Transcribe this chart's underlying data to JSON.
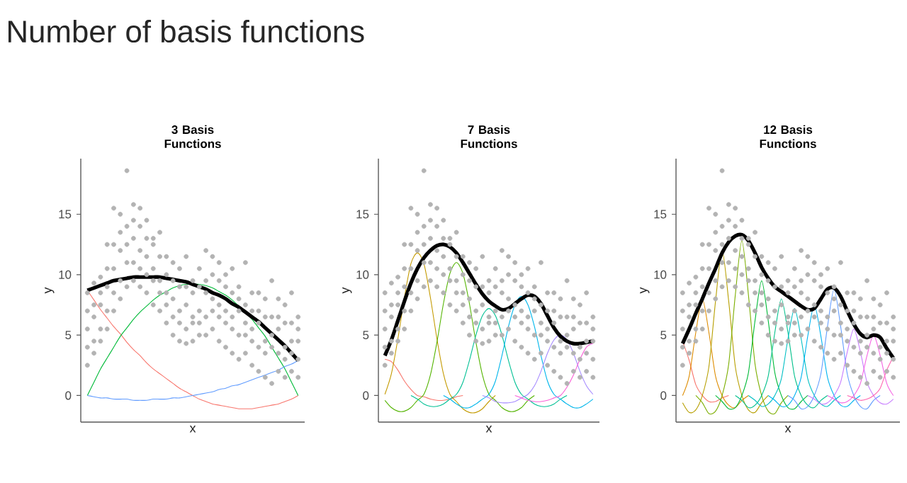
{
  "chart_data": [
    {
      "type": "other",
      "title": "Number of basis functions"
    },
    {
      "type": "line",
      "title": "3 Basis Functions",
      "xlabel": "x",
      "ylabel": "y",
      "tick_labels": "y",
      "categories": [
        null,
        null,
        null,
        null,
        null,
        null,
        null,
        null,
        null,
        null,
        null,
        null,
        null,
        null,
        null,
        null,
        null,
        null,
        null,
        null,
        null,
        null,
        null,
        null,
        null,
        null,
        null,
        null,
        null,
        null,
        null,
        null,
        null
      ],
      "ylim": [
        -2.2,
        19.6
      ],
      "yticks": [
        0,
        5,
        10,
        15
      ],
      "series": [
        {
          "type": "scatter",
          "marker": "circle",
          "color": "#b3b3b3",
          "values": [
            8.5,
            9.3,
            9.8,
            12.5,
            15.5,
            15,
            18.6,
            15.8,
            15.5,
            14.5,
            13,
            13.5,
            11.5,
            11,
            10.5,
            11.5,
            9.5,
            10.5,
            12,
            11.5,
            11,
            10,
            10.5,
            9,
            11,
            8.5,
            8.5,
            8,
            9.5,
            8,
            7.5,
            8.5,
            6.5
          ]
        },
        {
          "type": "scatter",
          "marker": "circle",
          "color": "#b3b3b3",
          "values": [
            7,
            7.5,
            8.5,
            10.5,
            12.5,
            13.5,
            14,
            14.5,
            14,
            13,
            12.5,
            11.5,
            10,
            9.5,
            9,
            9,
            8.5,
            9,
            9.5,
            10,
            9.5,
            9,
            8.5,
            8,
            7.5,
            7,
            7,
            6.5,
            6.5,
            6.5,
            6,
            6,
            5.5
          ]
        },
        {
          "type": "scatter",
          "marker": "circle",
          "color": "#b3b3b3",
          "values": [
            5.5,
            6.5,
            7.5,
            9,
            10.5,
            12,
            12.5,
            13,
            12,
            11.5,
            10.5,
            9.5,
            8.5,
            8,
            7,
            7.5,
            6.5,
            7,
            8.5,
            8,
            7.5,
            7,
            6.5,
            7,
            6,
            5.5,
            6,
            4.5,
            5,
            5.5,
            4,
            4.5,
            4.5
          ]
        },
        {
          "type": "scatter",
          "marker": "circle",
          "color": "#b3b3b3",
          "values": [
            4,
            4.5,
            5.5,
            7,
            8.5,
            9.5,
            11,
            11,
            10.5,
            10,
            9.5,
            8.5,
            7.5,
            6.5,
            6,
            5.5,
            6,
            6,
            6.5,
            7,
            6.5,
            6,
            5.5,
            5,
            5,
            4.5,
            4,
            3.5,
            4,
            3.5,
            3,
            3.5,
            3
          ]
        },
        {
          "type": "scatter",
          "marker": "circle",
          "color": "#b3b3b3",
          "values": [
            2.5,
            3.5,
            4.5,
            5.5,
            7,
            8,
            9,
            9.5,
            9,
            8.5,
            7.5,
            7,
            6,
            5,
            4.5,
            4.3,
            4.5,
            5,
            5,
            5.5,
            4.5,
            4,
            3.5,
            3,
            3.5,
            2.5,
            2,
            1.5,
            1,
            2,
            1.5,
            2,
            1.5
          ]
        },
        {
          "color": "#f8766d",
          "values": [
            8.7,
            7.9,
            7.1,
            6.4,
            5.7,
            5.1,
            4.4,
            3.8,
            3.3,
            2.7,
            2.2,
            1.8,
            1.4,
            1,
            0.6,
            0.3,
            0,
            -0.3,
            -0.5,
            -0.7,
            -0.8,
            -0.9,
            -1,
            -1.1,
            -1.1,
            -1.1,
            -1,
            -0.9,
            -0.8,
            -0.7,
            -0.5,
            -0.3,
            0
          ]
        },
        {
          "color": "#00ba38",
          "values": [
            0,
            1.1,
            2.2,
            3.1,
            4,
            4.9,
            5.6,
            6.3,
            6.9,
            7.4,
            7.9,
            8.3,
            8.6,
            8.9,
            9.1,
            9.2,
            9.2,
            9.2,
            9.1,
            8.9,
            8.6,
            8.3,
            7.9,
            7.4,
            6.9,
            6.3,
            5.6,
            4.9,
            4,
            3.1,
            2.2,
            1.1,
            0
          ]
        },
        {
          "color": "#619cff",
          "values": [
            0,
            -0.1,
            -0.2,
            -0.2,
            -0.3,
            -0.3,
            -0.3,
            -0.4,
            -0.4,
            -0.4,
            -0.3,
            -0.3,
            -0.3,
            -0.2,
            -0.2,
            -0.1,
            0,
            0.1,
            0.2,
            0.3,
            0.5,
            0.6,
            0.8,
            0.9,
            1.1,
            1.3,
            1.5,
            1.7,
            1.9,
            2.1,
            2.4,
            2.6,
            2.9
          ]
        },
        {
          "color": "#000000",
          "values": [
            8.7,
            8.9,
            9.1,
            9.3,
            9.5,
            9.6,
            9.7,
            9.8,
            9.8,
            9.8,
            9.8,
            9.8,
            9.7,
            9.6,
            9.5,
            9.4,
            9.2,
            9,
            8.8,
            8.5,
            8.3,
            8,
            7.6,
            7.3,
            6.9,
            6.5,
            6.1,
            5.6,
            5.1,
            4.6,
            4.1,
            3.5,
            2.9
          ]
        }
      ]
    },
    {
      "type": "line",
      "title": "7 Basis Functions",
      "xlabel": "x",
      "ylabel": "y",
      "tick_labels": "y",
      "categories": [
        null,
        null,
        null,
        null,
        null,
        null,
        null,
        null,
        null,
        null,
        null,
        null,
        null,
        null,
        null,
        null,
        null,
        null,
        null,
        null,
        null,
        null,
        null,
        null,
        null,
        null,
        null,
        null,
        null,
        null,
        null,
        null,
        null
      ],
      "ylim": [
        -2.2,
        19.6
      ],
      "yticks": [
        0,
        5,
        10,
        15
      ],
      "series": [
        {
          "type": "scatter",
          "marker": "circle",
          "color": "#b3b3b3",
          "values": [
            8.5,
            9.3,
            9.8,
            12.5,
            15.5,
            15,
            18.6,
            15.8,
            15.5,
            14.5,
            13,
            13.5,
            11.5,
            11,
            10.5,
            11.5,
            9.5,
            10.5,
            12,
            11.5,
            11,
            10,
            10.5,
            9,
            11,
            8.5,
            8.5,
            8,
            9.5,
            8,
            7.5,
            8.5,
            6.5
          ]
        },
        {
          "type": "scatter",
          "marker": "circle",
          "color": "#b3b3b3",
          "values": [
            7,
            7.5,
            8.5,
            10.5,
            12.5,
            13.5,
            14,
            14.5,
            14,
            13,
            12.5,
            11.5,
            10,
            9.5,
            9,
            9,
            8.5,
            9,
            9.5,
            10,
            9.5,
            9,
            8.5,
            8,
            7.5,
            7,
            7,
            6.5,
            6.5,
            6.5,
            6,
            6,
            5.5
          ]
        },
        {
          "type": "scatter",
          "marker": "circle",
          "color": "#b3b3b3",
          "values": [
            5.5,
            6.5,
            7.5,
            9,
            10.5,
            12,
            12.5,
            13,
            12,
            11.5,
            10.5,
            9.5,
            8.5,
            8,
            7,
            7.5,
            6.5,
            7,
            8.5,
            8,
            7.5,
            7,
            6.5,
            7,
            6,
            5.5,
            6,
            4.5,
            5,
            5.5,
            4,
            4.5,
            4.5
          ]
        },
        {
          "type": "scatter",
          "marker": "circle",
          "color": "#b3b3b3",
          "values": [
            4,
            4.5,
            5.5,
            7,
            8.5,
            9.5,
            11,
            11,
            10.5,
            10,
            9.5,
            8.5,
            7.5,
            6.5,
            6,
            5.5,
            6,
            6,
            6.5,
            7,
            6.5,
            6,
            5.5,
            5,
            5,
            4.5,
            4,
            3.5,
            4,
            3.5,
            3,
            3.5,
            3
          ]
        },
        {
          "type": "scatter",
          "marker": "circle",
          "color": "#b3b3b3",
          "values": [
            2.5,
            3.5,
            4.5,
            5.5,
            7,
            8,
            9,
            9.5,
            9,
            8.5,
            7.5,
            7,
            6,
            5,
            4.5,
            4.3,
            4.5,
            5,
            5,
            5.5,
            4.5,
            4,
            3.5,
            3,
            3.5,
            2.5,
            2,
            1.5,
            1,
            2,
            1.5,
            2,
            1.5
          ]
        },
        {
          "color": "#f8766d",
          "values": [
            3,
            2.8,
            2.1,
            1.2,
            0.5,
            0,
            -0.1,
            -0.3,
            -0.4,
            -0.4,
            -0.3,
            -0.1,
            0,
            null,
            null,
            null,
            null,
            null,
            null,
            null,
            null,
            null,
            null,
            null,
            null,
            null,
            null,
            null,
            null,
            null,
            null,
            null,
            null
          ]
        },
        {
          "color": "#c49a00",
          "values": [
            0.1,
            1.8,
            4.7,
            8.1,
            10.9,
            11.8,
            10.9,
            8.1,
            4.7,
            1.8,
            0.1,
            -0.5,
            -1.1,
            -1.4,
            -1.4,
            -1.1,
            -0.5,
            0,
            null,
            null,
            null,
            null,
            null,
            null,
            null,
            null,
            null,
            null,
            null,
            null,
            null,
            null,
            null
          ]
        },
        {
          "color": "#53b400",
          "values": [
            -0.4,
            -1,
            -1.3,
            -1.3,
            -1,
            -0.4,
            0.1,
            1.7,
            4.4,
            7.6,
            10.1,
            11,
            10.1,
            7.6,
            4.4,
            1.7,
            0.1,
            -0.4,
            -1,
            -1.3,
            -1.3,
            -1,
            -0.4,
            0,
            null,
            null,
            null,
            null,
            null,
            null,
            null,
            null,
            null
          ]
        },
        {
          "color": "#00c094",
          "values": [
            null,
            null,
            null,
            null,
            0,
            -0.3,
            -0.7,
            -0.9,
            -0.9,
            -0.7,
            -0.3,
            0.1,
            1.1,
            2.9,
            5,
            6.6,
            7.2,
            6.6,
            5,
            2.9,
            1.1,
            0.1,
            -0.3,
            -0.7,
            -0.9,
            -0.9,
            -0.7,
            -0.3,
            0,
            null,
            null,
            null,
            null
          ]
        },
        {
          "color": "#00b6eb",
          "values": [
            null,
            null,
            null,
            null,
            null,
            null,
            null,
            null,
            null,
            0,
            -0.3,
            -0.7,
            -1,
            -1,
            -0.7,
            -0.3,
            0.1,
            1.2,
            3.3,
            5.7,
            7.5,
            8.2,
            7.5,
            5.7,
            3.3,
            1.2,
            0.1,
            -0.3,
            -0.7,
            -1,
            -1,
            -0.7,
            -0.3
          ]
        },
        {
          "color": "#a58aff",
          "values": [
            null,
            null,
            null,
            null,
            null,
            null,
            null,
            null,
            null,
            null,
            null,
            null,
            null,
            null,
            null,
            0,
            -0.2,
            -0.5,
            -0.6,
            -0.6,
            -0.5,
            -0.2,
            0.1,
            0.8,
            2,
            3.5,
            4.6,
            5,
            4.6,
            3.5,
            2,
            0.8,
            0.1
          ]
        },
        {
          "color": "#fb61d7",
          "values": [
            null,
            null,
            null,
            null,
            null,
            null,
            null,
            null,
            null,
            null,
            null,
            null,
            null,
            null,
            null,
            null,
            null,
            null,
            null,
            null,
            0,
            -0.2,
            -0.4,
            -0.5,
            -0.5,
            -0.4,
            -0.2,
            0,
            0.7,
            1.7,
            3,
            4,
            4.3
          ]
        },
        {
          "color": "#000000",
          "values": [
            3.3,
            4.6,
            6.2,
            7.8,
            9.3,
            10.5,
            11.4,
            12,
            12.4,
            12.5,
            12.3,
            11.8,
            11,
            10.1,
            9.2,
            8.4,
            7.8,
            7.4,
            7.1,
            7.2,
            7.6,
            8,
            8.3,
            8.2,
            7.6,
            6.6,
            5.6,
            4.9,
            4.5,
            4.3,
            4.3,
            4.4,
            4.5
          ]
        }
      ]
    },
    {
      "type": "line",
      "title": "12 Basis Functions",
      "xlabel": "x",
      "ylabel": "y",
      "tick_labels": "y",
      "categories": [
        null,
        null,
        null,
        null,
        null,
        null,
        null,
        null,
        null,
        null,
        null,
        null,
        null,
        null,
        null,
        null,
        null,
        null,
        null,
        null,
        null,
        null,
        null,
        null,
        null,
        null,
        null,
        null,
        null,
        null,
        null,
        null,
        null
      ],
      "ylim": [
        -2.2,
        19.6
      ],
      "yticks": [
        0,
        5,
        10,
        15
      ],
      "series": [
        {
          "type": "scatter",
          "marker": "circle",
          "color": "#b3b3b3",
          "values": [
            8.5,
            9.3,
            9.8,
            12.5,
            15.5,
            15,
            18.6,
            15.8,
            15.5,
            14.5,
            13,
            13.5,
            11.5,
            11,
            10.5,
            11.5,
            9.5,
            10.5,
            12,
            11.5,
            11,
            10,
            10.5,
            9,
            11,
            8.5,
            8.5,
            8,
            9.5,
            8,
            7.5,
            8.5,
            6.5
          ]
        },
        {
          "type": "scatter",
          "marker": "circle",
          "color": "#b3b3b3",
          "values": [
            7,
            7.5,
            8.5,
            10.5,
            12.5,
            13.5,
            14,
            14.5,
            14,
            13,
            12.5,
            11.5,
            10,
            9.5,
            9,
            9,
            8.5,
            9,
            9.5,
            10,
            9.5,
            9,
            8.5,
            8,
            7.5,
            7,
            7,
            6.5,
            6.5,
            6.5,
            6,
            6,
            5.5
          ]
        },
        {
          "type": "scatter",
          "marker": "circle",
          "color": "#b3b3b3",
          "values": [
            5.5,
            6.5,
            7.5,
            9,
            10.5,
            12,
            12.5,
            13,
            12,
            11.5,
            10.5,
            9.5,
            8.5,
            8,
            7,
            7.5,
            6.5,
            7,
            8.5,
            8,
            7.5,
            7,
            6.5,
            7,
            6,
            5.5,
            6,
            4.5,
            5,
            5.5,
            4,
            4.5,
            4.5
          ]
        },
        {
          "type": "scatter",
          "marker": "circle",
          "color": "#b3b3b3",
          "values": [
            4,
            4.5,
            5.5,
            7,
            8.5,
            9.5,
            11,
            11,
            10.5,
            10,
            9.5,
            8.5,
            7.5,
            6.5,
            6,
            5.5,
            6,
            6,
            6.5,
            7,
            6.5,
            6,
            5.5,
            5,
            5,
            4.5,
            4,
            3.5,
            4,
            3.5,
            3,
            3.5,
            3
          ]
        },
        {
          "type": "scatter",
          "marker": "circle",
          "color": "#b3b3b3",
          "values": [
            2.5,
            3.5,
            4.5,
            5.5,
            7,
            8,
            9,
            9.5,
            9,
            8.5,
            7.5,
            7,
            6,
            5,
            4.5,
            4.3,
            4.5,
            5,
            5,
            5.5,
            4.5,
            4,
            3.5,
            3,
            3.5,
            2.5,
            2,
            1.5,
            1,
            2,
            1.5,
            2,
            1.5
          ]
        },
        {
          "color": "#f8766d",
          "values": [
            4.5,
            2.9,
            0.9,
            0,
            -0.5,
            -0.5,
            -0.2,
            0,
            null,
            null,
            null,
            null,
            null,
            null,
            null,
            null,
            null,
            null,
            null,
            null,
            null,
            null,
            null,
            null,
            null,
            null,
            null,
            null,
            null,
            null,
            null,
            null,
            null
          ]
        },
        {
          "color": "#de8c00",
          "values": [
            0,
            1.6,
            5.2,
            8,
            5.2,
            1.6,
            0,
            -0.8,
            -1,
            -0.4,
            0,
            null,
            null,
            null,
            null,
            null,
            null,
            null,
            null,
            null,
            null,
            null,
            null,
            null,
            null,
            null,
            null,
            null,
            null,
            null,
            null,
            null,
            null
          ]
        },
        {
          "color": "#b79f00",
          "values": [
            -0.6,
            -1.4,
            -1.2,
            0,
            2.4,
            7.8,
            12,
            7.8,
            2.4,
            0,
            -1.2,
            -1.4,
            -0.6,
            0,
            null,
            null,
            null,
            null,
            null,
            null,
            null,
            null,
            null,
            null,
            null,
            null,
            null,
            null,
            null,
            null,
            null,
            null,
            null
          ]
        },
        {
          "color": "#7cae00",
          "values": [
            null,
            null,
            0,
            -0.6,
            -1.5,
            -1.3,
            0,
            2.6,
            8.3,
            12.8,
            8.3,
            2.6,
            0,
            -1.3,
            -1.5,
            -0.6,
            0,
            null,
            null,
            null,
            null,
            null,
            null,
            null,
            null,
            null,
            null,
            null,
            null,
            null,
            null,
            null,
            null
          ]
        },
        {
          "color": "#00ba38",
          "values": [
            null,
            null,
            null,
            null,
            null,
            0,
            -0.5,
            -1.1,
            -1,
            0,
            1.9,
            6.2,
            9.5,
            6.2,
            1.9,
            0,
            -1,
            -1.1,
            -0.5,
            0,
            null,
            null,
            null,
            null,
            null,
            null,
            null,
            null,
            null,
            null,
            null,
            null,
            null
          ]
        },
        {
          "color": "#00c08b",
          "values": [
            null,
            null,
            null,
            null,
            null,
            null,
            null,
            null,
            0,
            -0.4,
            -1,
            -0.8,
            0,
            1.6,
            5.2,
            8,
            5.2,
            1.6,
            0,
            -0.8,
            -1,
            -0.4,
            0,
            null,
            null,
            null,
            null,
            null,
            null,
            null,
            null,
            null,
            null
          ]
        },
        {
          "color": "#00bfc4",
          "values": [
            null,
            null,
            null,
            null,
            null,
            null,
            null,
            null,
            null,
            null,
            0,
            -0.4,
            -0.9,
            -0.7,
            0,
            1.4,
            4.7,
            7.2,
            4.7,
            1.4,
            0,
            -0.7,
            -0.9,
            -0.4,
            0,
            null,
            null,
            null,
            null,
            null,
            null,
            null,
            null
          ]
        },
        {
          "color": "#00b4f0",
          "values": [
            null,
            null,
            null,
            null,
            null,
            null,
            null,
            null,
            null,
            null,
            null,
            null,
            null,
            0,
            -0.4,
            -0.9,
            -0.8,
            0,
            1.5,
            4.9,
            7.5,
            4.9,
            1.5,
            0,
            -0.8,
            -0.9,
            -0.4,
            0,
            null,
            null,
            null,
            null,
            null
          ]
        },
        {
          "color": "#619cff",
          "values": [
            null,
            null,
            null,
            null,
            null,
            null,
            null,
            null,
            null,
            null,
            null,
            null,
            null,
            null,
            null,
            null,
            0,
            -0.4,
            -1.1,
            -0.9,
            0,
            1.8,
            5.7,
            8.8,
            5.7,
            1.8,
            0,
            -0.9,
            -1.1,
            -0.4,
            0,
            null,
            null
          ]
        },
        {
          "color": "#c77cff",
          "values": [
            null,
            null,
            null,
            null,
            null,
            null,
            null,
            null,
            null,
            null,
            null,
            null,
            null,
            null,
            null,
            null,
            null,
            null,
            null,
            0,
            -0.3,
            -0.7,
            -0.6,
            0,
            1.1,
            3.6,
            5.5,
            3.6,
            1.1,
            0,
            -0.6,
            -0.7,
            -0.3
          ]
        },
        {
          "color": "#f564e3",
          "values": [
            null,
            null,
            null,
            null,
            null,
            null,
            null,
            null,
            null,
            null,
            null,
            null,
            null,
            null,
            null,
            null,
            null,
            null,
            null,
            null,
            null,
            null,
            0,
            -0.3,
            -0.6,
            -0.5,
            0,
            1,
            3.3,
            5,
            3.3,
            1,
            0
          ]
        },
        {
          "color": "#ff64b0",
          "values": [
            null,
            null,
            null,
            null,
            null,
            null,
            null,
            null,
            null,
            null,
            null,
            null,
            null,
            null,
            null,
            null,
            null,
            null,
            null,
            null,
            null,
            null,
            null,
            null,
            null,
            0,
            -0.2,
            -0.4,
            -0.3,
            0,
            0.6,
            2.1,
            3.2
          ]
        },
        {
          "color": "#000000",
          "values": [
            4.3,
            5.5,
            6.8,
            8,
            9.3,
            10.5,
            11.8,
            12.7,
            13.2,
            13.3,
            12.8,
            11.8,
            10.6,
            9.7,
            9,
            8.6,
            8.2,
            7.8,
            7.4,
            7.1,
            7.2,
            8,
            8.8,
            8.9,
            8.2,
            7,
            5.9,
            5.1,
            4.8,
            5,
            4.8,
            3.9,
            3.1
          ]
        }
      ]
    }
  ]
}
